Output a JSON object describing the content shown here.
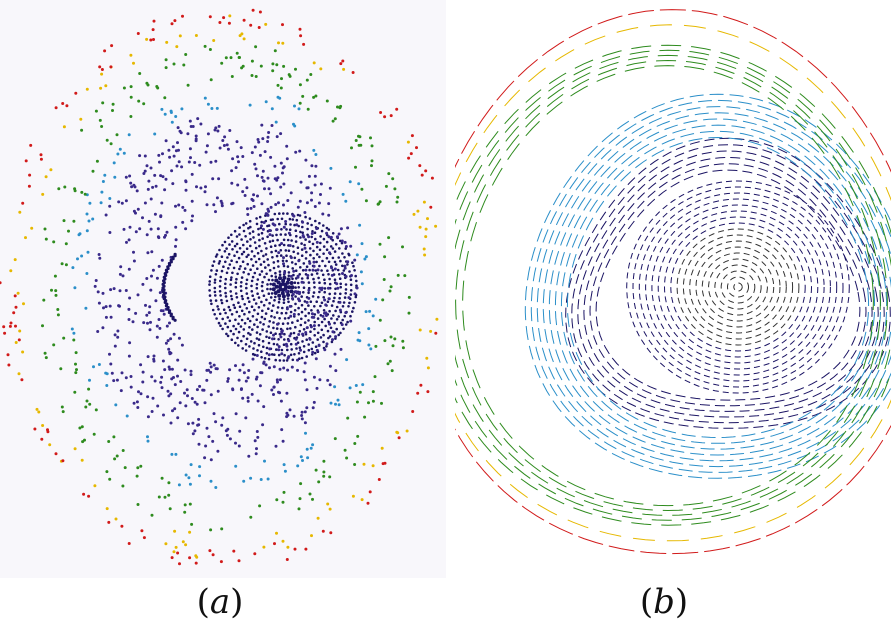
{
  "panels": [
    {
      "caption_open": "(",
      "caption_letter": "a",
      "caption_close": ")",
      "style": "points",
      "background": "#f8f7fb"
    },
    {
      "caption_open": "(",
      "caption_letter": "b",
      "caption_close": ")",
      "style": "dashed-contours",
      "background": "#ffffff"
    }
  ],
  "colors": {
    "core": "#1b1464",
    "inner": "#3a2a8a",
    "mid": "#2b8fc9",
    "outer": "#2e8b1e",
    "edge_yellow": "#e6b800",
    "edge_red": "#d11a1a"
  }
}
